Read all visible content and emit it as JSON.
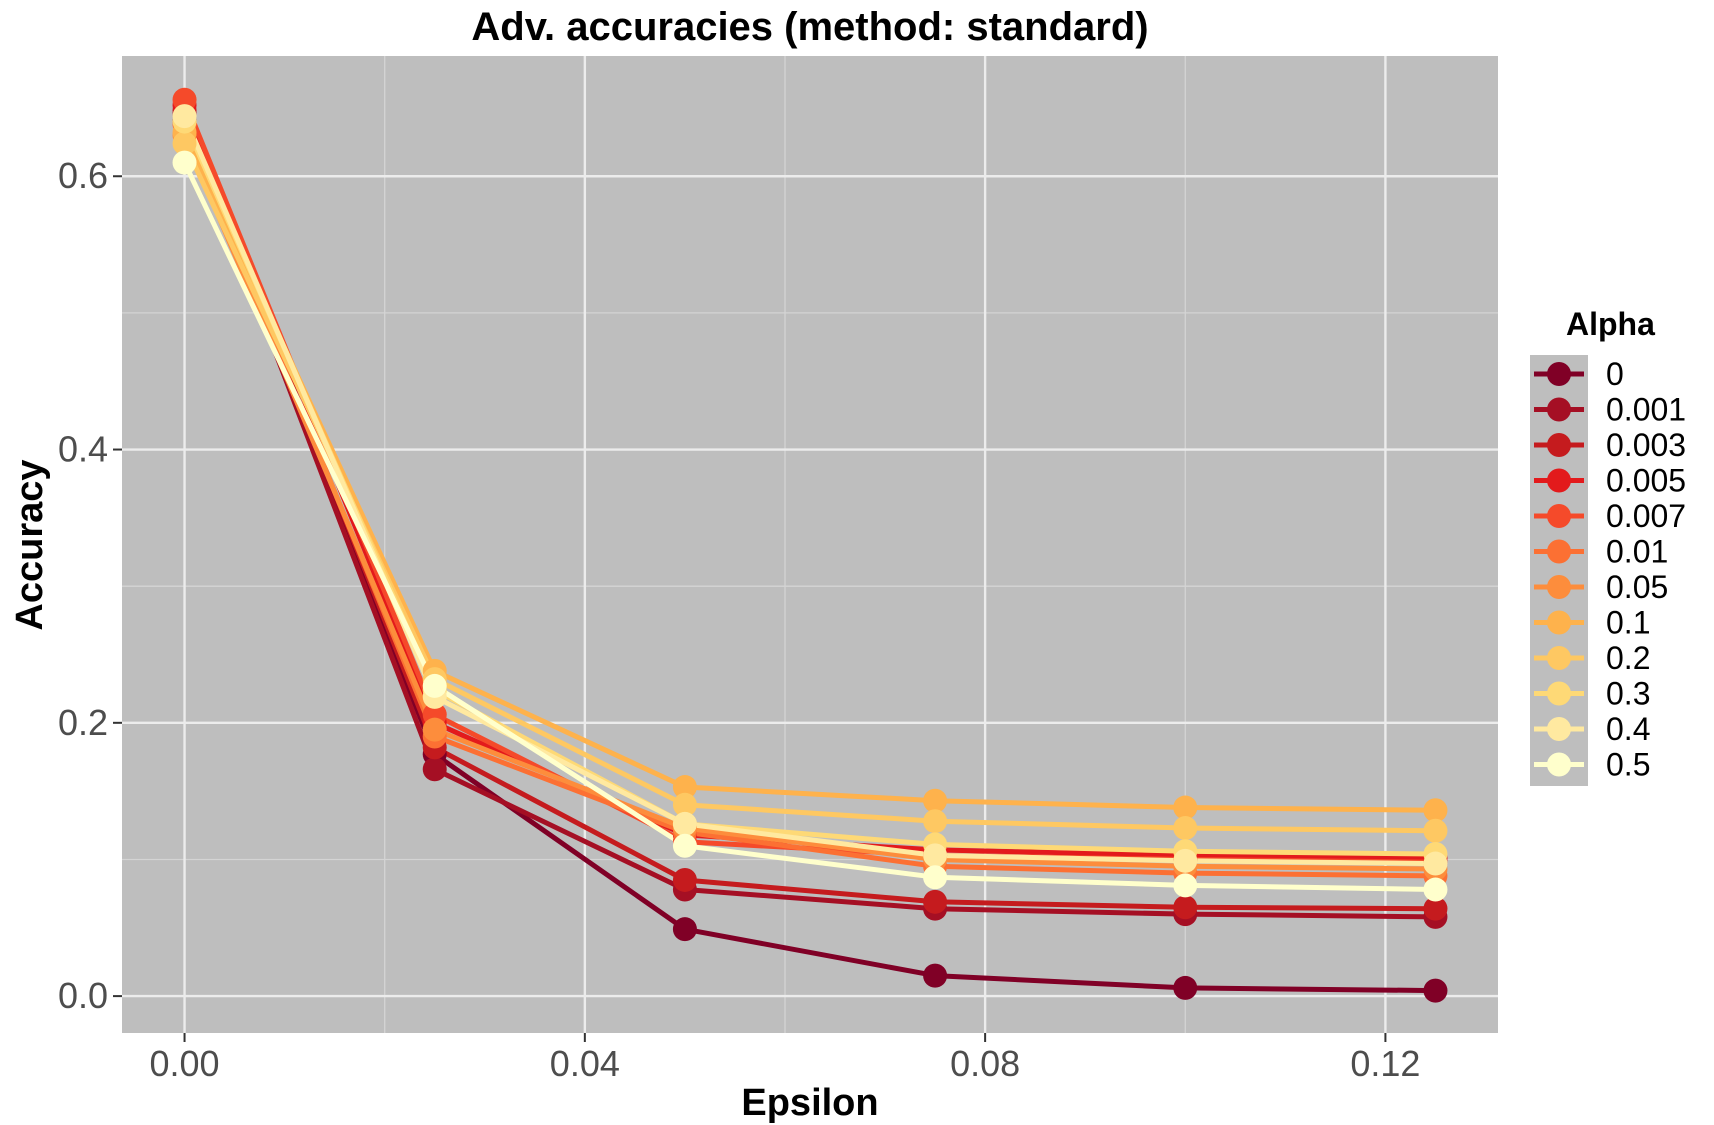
{
  "chart_data": {
    "type": "line",
    "title": "Adv. accuracies (method: standard)",
    "xlabel": "Epsilon",
    "ylabel": "Accuracy",
    "x": [
      0.0,
      0.025,
      0.05,
      0.075,
      0.1,
      0.125
    ],
    "x_ticks": [
      0.0,
      0.04,
      0.08,
      0.12
    ],
    "x_tick_labels": [
      "0.00",
      "0.04",
      "0.08",
      "0.12"
    ],
    "y_ticks": [
      0.0,
      0.2,
      0.4,
      0.6
    ],
    "y_tick_labels": [
      "0.0",
      "0.2",
      "0.4",
      "0.6"
    ],
    "xlim": [
      -0.00625,
      0.13125
    ],
    "ylim": [
      -0.027,
      0.688
    ],
    "grid": true,
    "background": "#bebebe",
    "legend": {
      "title": "Alpha",
      "position": "right"
    },
    "series": [
      {
        "name": "0",
        "color": "#800026",
        "values": [
          0.64,
          0.177,
          0.049,
          0.015,
          0.006,
          0.004
        ]
      },
      {
        "name": "0.001",
        "color": "#a50f24",
        "values": [
          0.645,
          0.166,
          0.078,
          0.064,
          0.06,
          0.058
        ]
      },
      {
        "name": "0.003",
        "color": "#c51b1e",
        "values": [
          0.648,
          0.182,
          0.085,
          0.069,
          0.065,
          0.064
        ]
      },
      {
        "name": "0.005",
        "color": "#e31a1c",
        "values": [
          0.652,
          0.2,
          0.118,
          0.107,
          0.103,
          0.101
        ]
      },
      {
        "name": "0.007",
        "color": "#f54a2a",
        "values": [
          0.656,
          0.206,
          0.113,
          0.103,
          0.1,
          0.098
        ]
      },
      {
        "name": "0.01",
        "color": "#fc7033",
        "values": [
          0.638,
          0.19,
          0.12,
          0.095,
          0.09,
          0.088
        ]
      },
      {
        "name": "0.05",
        "color": "#fd8d3c",
        "values": [
          0.63,
          0.195,
          0.123,
          0.1,
          0.095,
          0.093
        ]
      },
      {
        "name": "0.1",
        "color": "#feb24c",
        "values": [
          0.632,
          0.238,
          0.153,
          0.143,
          0.138,
          0.136
        ]
      },
      {
        "name": "0.2",
        "color": "#fec862",
        "values": [
          0.624,
          0.232,
          0.14,
          0.128,
          0.123,
          0.121
        ]
      },
      {
        "name": "0.3",
        "color": "#fed976",
        "values": [
          0.64,
          0.224,
          0.126,
          0.111,
          0.106,
          0.104
        ]
      },
      {
        "name": "0.4",
        "color": "#ffe9a0",
        "values": [
          0.644,
          0.219,
          0.126,
          0.103,
          0.099,
          0.097
        ]
      },
      {
        "name": "0.5",
        "color": "#ffffcc",
        "values": [
          0.61,
          0.227,
          0.11,
          0.087,
          0.081,
          0.078
        ]
      }
    ]
  }
}
